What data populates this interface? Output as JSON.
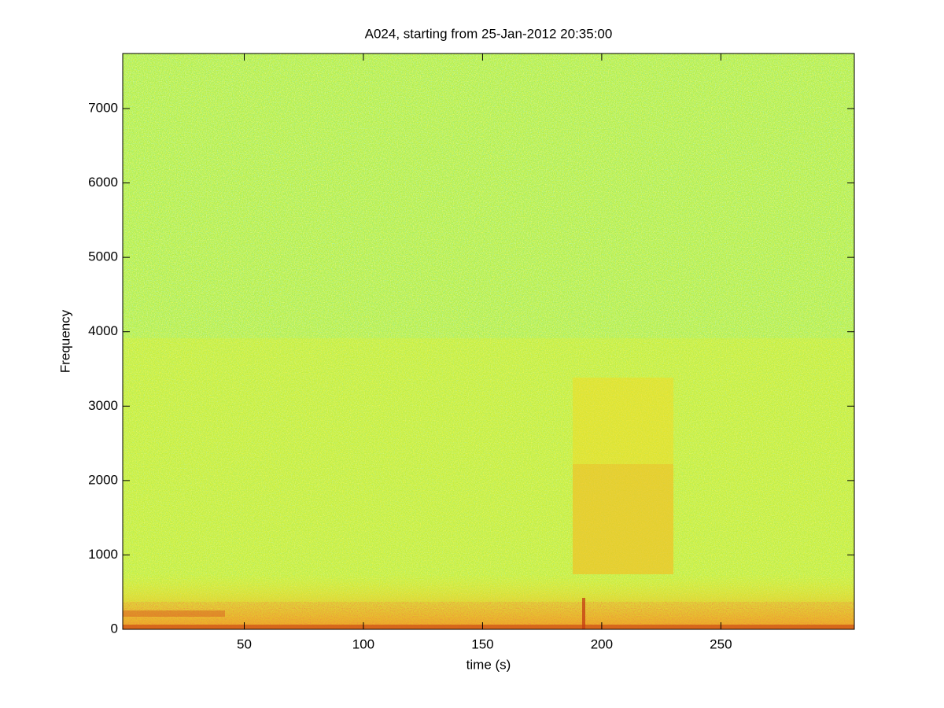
{
  "chart_data": {
    "type": "spectrogram",
    "title": "A024, starting from 25-Jan-2012 20:35:00",
    "xlabel": "time (s)",
    "ylabel": "Frequency",
    "xlim": [
      -1,
      306
    ],
    "ylim": [
      0,
      7740
    ],
    "xticks": [
      50,
      100,
      150,
      200,
      250
    ],
    "yticks": [
      0,
      1000,
      2000,
      3000,
      4000,
      5000,
      6000,
      7000
    ]
  }
}
